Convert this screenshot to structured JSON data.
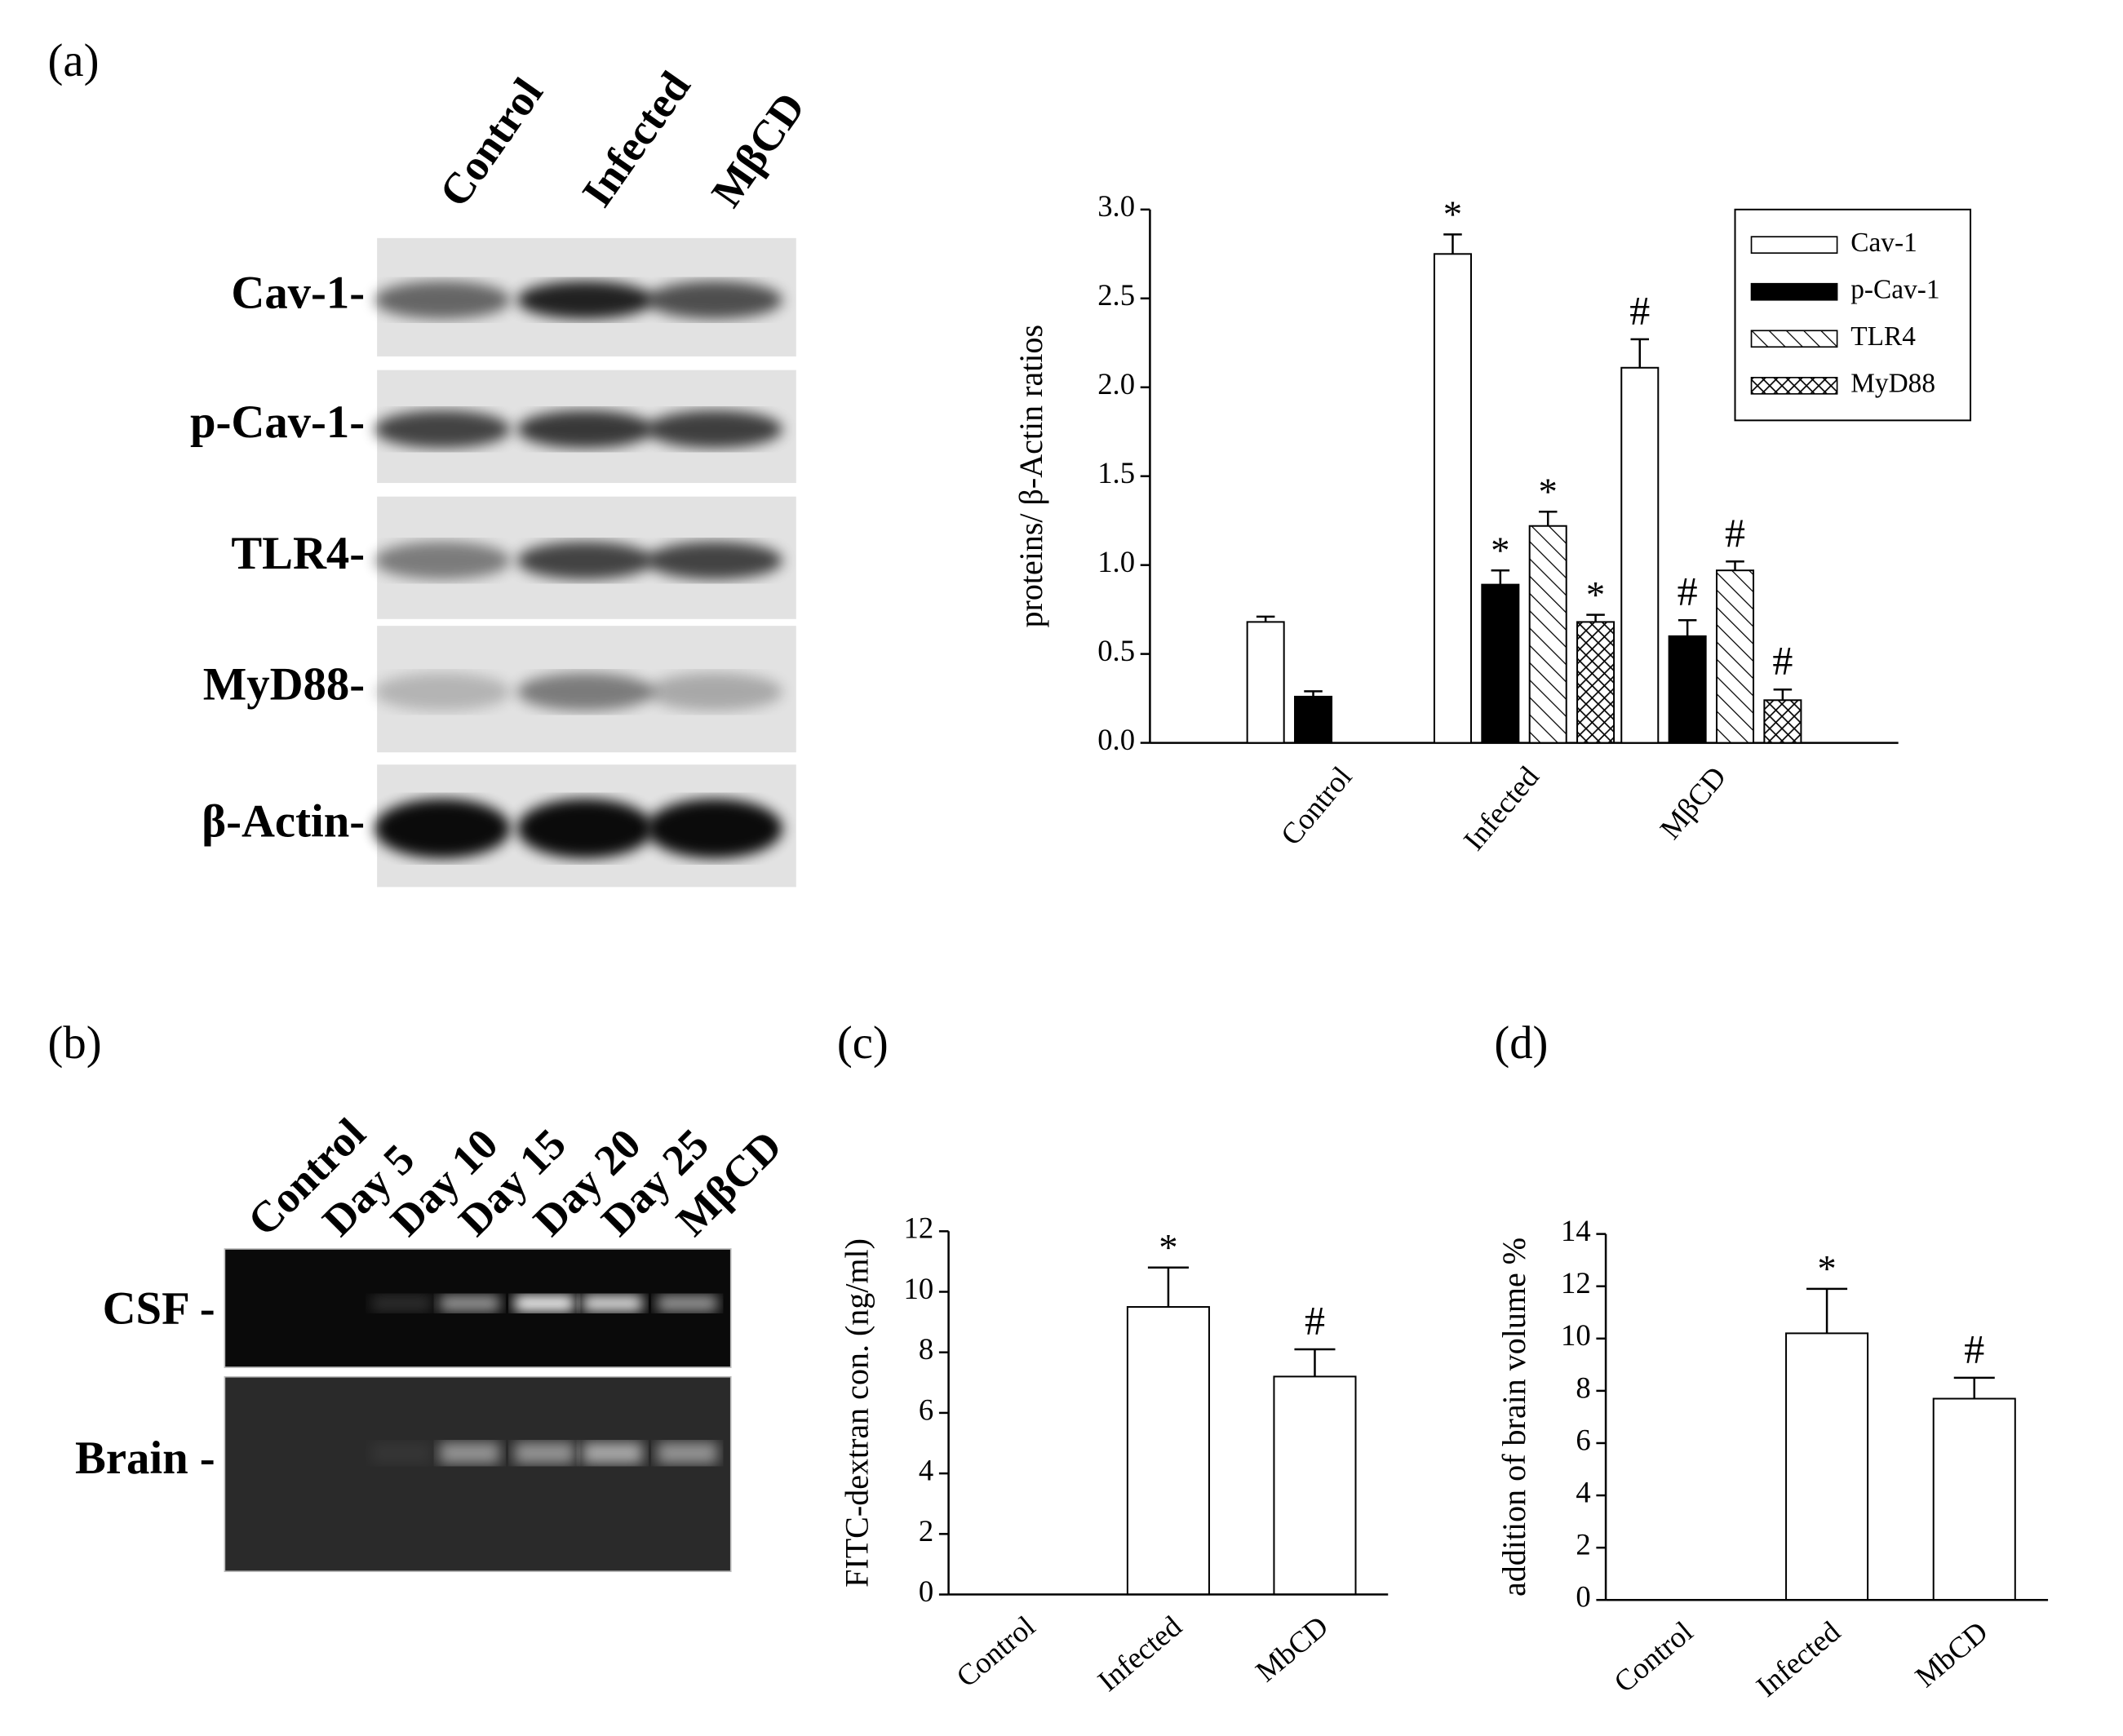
{
  "panel_labels": [
    "(a)",
    "(b)",
    "(c)",
    "(d)"
  ],
  "blot_a": {
    "lanes": [
      "Control",
      "Infected",
      "MβCD"
    ],
    "rows": [
      "Cav-1-",
      "p-Cav-1-",
      "TLR4-",
      "MyD88-",
      "β-Actin-"
    ]
  },
  "blot_b": {
    "lanes": [
      "Control",
      "Day 5",
      "Day 10",
      "Day 15",
      "Day 20",
      "Day 25",
      "MβCD"
    ],
    "rows": [
      "CSF -",
      "Brain -"
    ]
  },
  "chart_data": [
    {
      "type": "bar",
      "y_label": "proteins/ β-Actin ratios",
      "categories": [
        "Control",
        "Infected",
        "MβCD"
      ],
      "series": [
        {
          "name": "Cav-1",
          "color": "#ffffff",
          "pattern": "none",
          "values": [
            0.68,
            2.75,
            2.11
          ],
          "errors": [
            0.03,
            0.11,
            0.16
          ],
          "annotations": [
            null,
            "*",
            "#"
          ]
        },
        {
          "name": "p-Cav-1",
          "color": "#000000",
          "pattern": "solid",
          "values": [
            0.26,
            0.89,
            0.6
          ],
          "errors": [
            0.03,
            0.08,
            0.09
          ],
          "annotations": [
            null,
            "*",
            "#"
          ]
        },
        {
          "name": "TLR4",
          "color": "#000000",
          "pattern": "hatch",
          "values": [
            null,
            1.22,
            0.97
          ],
          "errors": [
            null,
            0.08,
            0.05
          ],
          "annotations": [
            null,
            "*",
            "#"
          ]
        },
        {
          "name": "MyD88",
          "color": "#000000",
          "pattern": "crosshatch",
          "values": [
            null,
            0.68,
            0.24
          ],
          "errors": [
            null,
            0.04,
            0.06
          ],
          "annotations": [
            null,
            "*",
            "#"
          ]
        }
      ],
      "ylim": [
        0,
        3
      ],
      "yticks": [
        {
          "value": 0,
          "label": "0.0"
        },
        {
          "value": 0.5,
          "label": "0.5"
        },
        {
          "value": 1,
          "label": "1.0"
        },
        {
          "value": 1.5,
          "label": "1.5"
        },
        {
          "value": 2,
          "label": "2.0"
        },
        {
          "value": 2.5,
          "label": "2.5"
        },
        {
          "value": 3,
          "label": "3.0"
        }
      ],
      "legend": "upper right"
    },
    {
      "type": "bar",
      "y_label": "FITC-dextran con. (ng/ml)",
      "categories": [
        "Control",
        "Infected",
        "MbCD"
      ],
      "values": [
        0,
        9.5,
        7.2
      ],
      "errors": [
        null,
        1.3,
        0.9
      ],
      "annotations": [
        null,
        "*",
        "#"
      ],
      "color": "#000000",
      "ylim": [
        0,
        12
      ],
      "yticks": [
        0,
        2,
        4,
        6,
        8,
        10,
        12
      ]
    },
    {
      "type": "bar",
      "y_label": "addition of brain volume %",
      "categories": [
        "Control",
        "Infected",
        "MbCD"
      ],
      "values": [
        0,
        10.2,
        7.7
      ],
      "errors": [
        null,
        1.7,
        0.8
      ],
      "annotations": [
        null,
        "*",
        "#"
      ],
      "color": "#000000",
      "ylim": [
        0,
        14
      ],
      "yticks": [
        0,
        2,
        4,
        6,
        8,
        10,
        12,
        14
      ]
    }
  ]
}
